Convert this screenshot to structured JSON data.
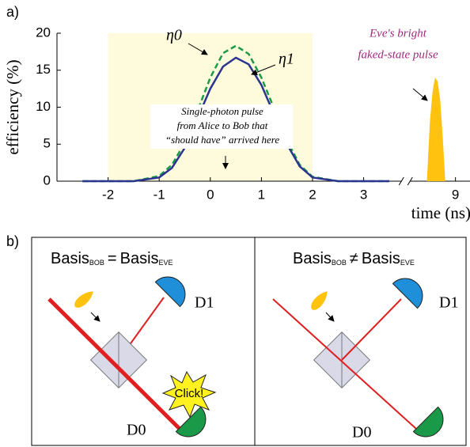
{
  "panel_labels": [
    "a)",
    "b)"
  ],
  "chart_data": {
    "type": "line",
    "xlabel": "time (ns)",
    "ylabel": "efficiency (%)",
    "xlim": [
      -3,
      9.3
    ],
    "axis_break": [
      3.8,
      8.05
    ],
    "xticks": [
      -2,
      -1,
      0,
      1,
      2,
      3,
      9
    ],
    "ylim": [
      0,
      20
    ],
    "yticks": [
      0,
      5,
      10,
      15,
      20
    ],
    "shaded_span": [
      -2,
      2
    ],
    "shade_color": "#fdfbdc",
    "series": [
      {
        "name": "η0",
        "color": "#1a9a48",
        "dashed": true,
        "x": [
          -2.5,
          -2,
          -1.5,
          -1,
          -0.75,
          -0.5,
          -0.25,
          0,
          0.25,
          0.5,
          0.75,
          1,
          1.25,
          1.5,
          1.75,
          2,
          2.5,
          3,
          3.5
        ],
        "values": [
          0,
          0,
          0,
          0.7,
          2.2,
          5.2,
          9.5,
          14,
          17.3,
          18.3,
          17.2,
          14,
          9.8,
          5.5,
          2.2,
          0.6,
          0,
          0,
          0
        ]
      },
      {
        "name": "η1",
        "color": "#2b3590",
        "dashed": false,
        "x": [
          -2.5,
          -2,
          -1.5,
          -1,
          -0.75,
          -0.5,
          -0.25,
          0,
          0.25,
          0.5,
          0.75,
          1,
          1.25,
          1.5,
          1.75,
          2,
          2.5,
          3,
          3.5
        ],
        "values": [
          0,
          0,
          0,
          0.5,
          1.8,
          4.5,
          8.5,
          12.5,
          15.5,
          16.7,
          15.8,
          13,
          9,
          5,
          2,
          0.5,
          0,
          0,
          0
        ]
      },
      {
        "color": "#ffc20e",
        "fill": true,
        "x": [
          8.44,
          8.5,
          8.55,
          8.6,
          8.65,
          8.7,
          8.75,
          8.8
        ],
        "values": [
          0,
          8,
          12,
          14,
          13.5,
          11,
          6,
          0
        ]
      }
    ],
    "annotations": {
      "pulse_note": [
        "Single-photon pulse",
        "from Alice to Bob that",
        "“should have” arrived here"
      ],
      "eve_note": [
        "Eve's bright",
        "faked-state pulse"
      ]
    }
  },
  "diagram": {
    "panels": [
      {
        "title": [
          "Basis",
          "BOB",
          "=",
          "Basis",
          "EVE"
        ],
        "detectors": [
          "D1",
          "D0"
        ],
        "click": "Click!"
      },
      {
        "title": [
          "Basis",
          "BOB",
          "≠",
          "Basis",
          "EVE"
        ],
        "detectors": [
          "D1",
          "D0"
        ]
      }
    ]
  }
}
